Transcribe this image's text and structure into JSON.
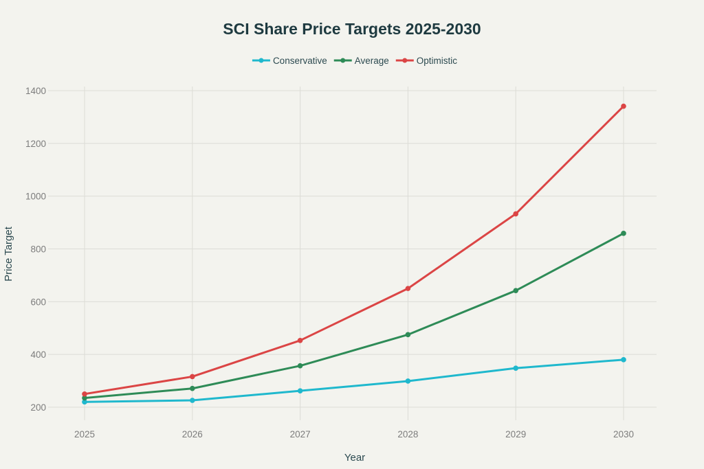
{
  "chart_data": {
    "type": "line",
    "title": "SCI Share Price Targets 2025-2030",
    "xlabel": "Year",
    "ylabel": "Price Target",
    "x": [
      "2025",
      "2026",
      "2027",
      "2028",
      "2029",
      "2030"
    ],
    "ylim": [
      130,
      1440
    ],
    "yticks": [
      200,
      400,
      600,
      800,
      1000,
      1200,
      1400
    ],
    "grid": true,
    "legend_position": "top-center",
    "series": [
      {
        "name": "Conservative",
        "color": "#1fb8cd",
        "values": [
          220,
          226,
          262,
          299,
          348,
          380
        ]
      },
      {
        "name": "Average",
        "color": "#2e8b57",
        "values": [
          235,
          271,
          357,
          475,
          642,
          859
        ]
      },
      {
        "name": "Optimistic",
        "color": "#db4545",
        "values": [
          250,
          316,
          453,
          650,
          933,
          1341
        ]
      }
    ]
  }
}
